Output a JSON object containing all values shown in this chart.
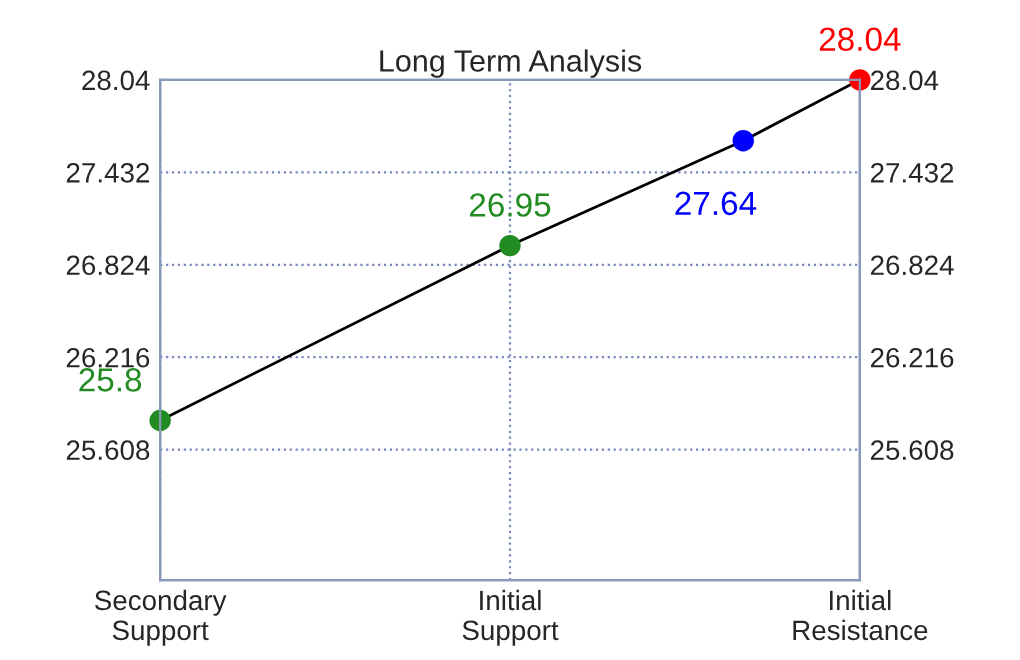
{
  "chart_data": {
    "type": "line",
    "title": "Long Term Analysis",
    "categories": [
      "Secondary\nSupport",
      null,
      null,
      "Initial\nSupport",
      null,
      null,
      "Initial\nResistance"
    ],
    "ylim": [
      24.75,
      28.04
    ],
    "yticks": [
      25.608,
      26.216,
      26.824,
      27.432,
      28.04
    ],
    "y2lim": [
      24.75,
      28.04
    ],
    "y2ticks": [
      25.608,
      26.216,
      26.824,
      27.432,
      28.04
    ],
    "grid": true,
    "data_labels": true,
    "series": [
      {
        "color": "#000000",
        "values": [
          25.8,
          null,
          null,
          26.95,
          null,
          27.64,
          28.04
        ],
        "colors": [
          "#228b22",
          null,
          null,
          "#228b22",
          null,
          "#0000ff",
          "#ff0000"
        ],
        "marker": "circle"
      }
    ]
  }
}
